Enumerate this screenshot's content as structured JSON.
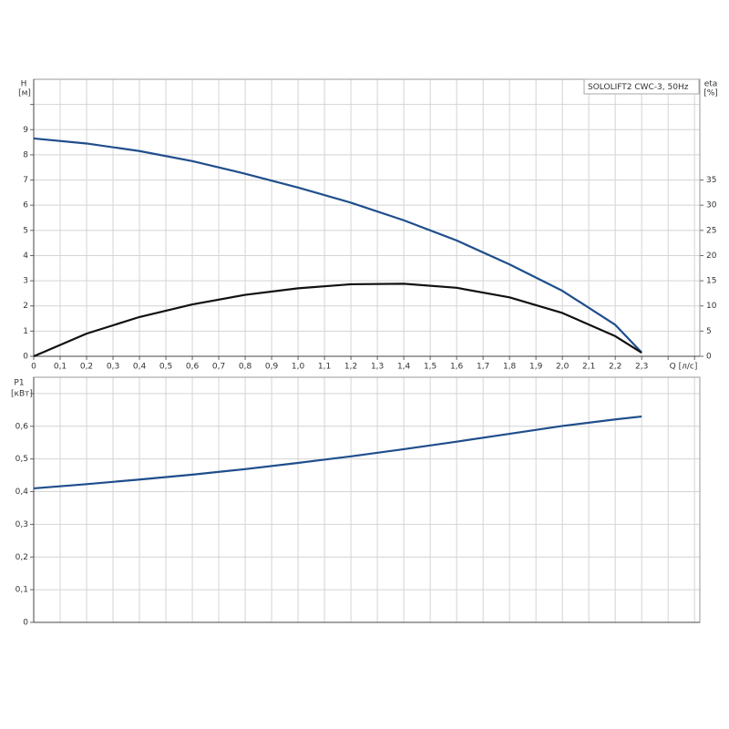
{
  "chart_data": [
    {
      "type": "line",
      "ylabel": "H",
      "yunit": "[м]",
      "y2label": "eta",
      "y2unit": "[%]",
      "xlabel": "Q [л/с]",
      "legend_text": "SOLOLIFT2 CWC-3, 50Hz",
      "x": [
        0,
        0.2,
        0.4,
        0.6,
        0.8,
        1.0,
        1.2,
        1.4,
        1.6,
        1.8,
        2.0,
        2.2,
        2.3
      ],
      "series": [
        {
          "color": "#1f4e8c",
          "values": [
            8.65,
            8.45,
            8.15,
            7.75,
            7.25,
            6.7,
            6.1,
            5.4,
            4.6,
            3.65,
            2.6,
            1.25,
            0.15
          ]
        },
        {
          "color": "#111111",
          "axis": "y2",
          "values": [
            0,
            4.5,
            7.8,
            10.3,
            12.2,
            13.5,
            14.3,
            14.4,
            13.6,
            11.7,
            8.6,
            4.0,
            0.7
          ]
        }
      ],
      "xlim": [
        0,
        2.52
      ],
      "xticks": [
        0,
        {
          "value": 0.1,
          "label": "0,1"
        },
        {
          "value": 0.2,
          "label": "0,2"
        },
        {
          "value": 0.3,
          "label": "0,3"
        },
        {
          "value": 0.4,
          "label": "0,4"
        },
        {
          "value": 0.5,
          "label": "0,5"
        },
        {
          "value": 0.6,
          "label": "0,6"
        },
        {
          "value": 0.7,
          "label": "0,7"
        },
        {
          "value": 0.8,
          "label": "0,8"
        },
        {
          "value": 0.9,
          "label": "0,9"
        },
        {
          "value": 1.0,
          "label": "1,0"
        },
        {
          "value": 1.1,
          "label": "1,1"
        },
        {
          "value": 1.2,
          "label": "1,2"
        },
        {
          "value": 1.3,
          "label": "1,3"
        },
        {
          "value": 1.4,
          "label": "1,4"
        },
        {
          "value": 1.5,
          "label": "1,5"
        },
        {
          "value": 1.6,
          "label": "1,6"
        },
        {
          "value": 1.7,
          "label": "1,7"
        },
        {
          "value": 1.8,
          "label": "1,8"
        },
        {
          "value": 1.9,
          "label": "1,9"
        },
        {
          "value": 2.0,
          "label": "2,0"
        },
        {
          "value": 2.1,
          "label": "2,1"
        },
        {
          "value": 2.2,
          "label": "2,2"
        },
        {
          "value": 2.3,
          "label": "2,3"
        },
        {
          "value": 2.4,
          "label": null
        },
        {
          "value": 2.5,
          "label": null
        }
      ],
      "ylim": [
        0,
        11
      ],
      "yticks": [
        0,
        1,
        2,
        3,
        4,
        5,
        6,
        7,
        8,
        9,
        {
          "value": 10,
          "label": null
        }
      ],
      "y2lim": [
        0,
        55
      ],
      "y2ticks": [
        0,
        5,
        10,
        15,
        20,
        25,
        30,
        35
      ],
      "grid": true
    },
    {
      "type": "line",
      "ylabel": "P1",
      "yunit": "[кВт]",
      "x": [
        0,
        0.2,
        0.4,
        0.6,
        0.8,
        1.0,
        1.2,
        1.4,
        1.6,
        1.8,
        2.0,
        2.2,
        2.3
      ],
      "series": [
        {
          "color": "#1f4e8c",
          "values": [
            0.41,
            0.423,
            0.437,
            0.452,
            0.469,
            0.488,
            0.508,
            0.53,
            0.553,
            0.577,
            0.601,
            0.621,
            0.63
          ]
        }
      ],
      "xlim": [
        0,
        2.52
      ],
      "ylim": [
        0,
        0.75
      ],
      "yticks": [
        0,
        {
          "value": 0.1,
          "label": "0,1"
        },
        {
          "value": 0.2,
          "label": "0,2"
        },
        {
          "value": 0.3,
          "label": "0,3"
        },
        {
          "value": 0.4,
          "label": "0,4"
        },
        {
          "value": 0.5,
          "label": "0,5"
        },
        {
          "value": 0.6,
          "label": "0,6"
        },
        {
          "value": 0.7,
          "label": null
        }
      ],
      "grid": true
    }
  ]
}
